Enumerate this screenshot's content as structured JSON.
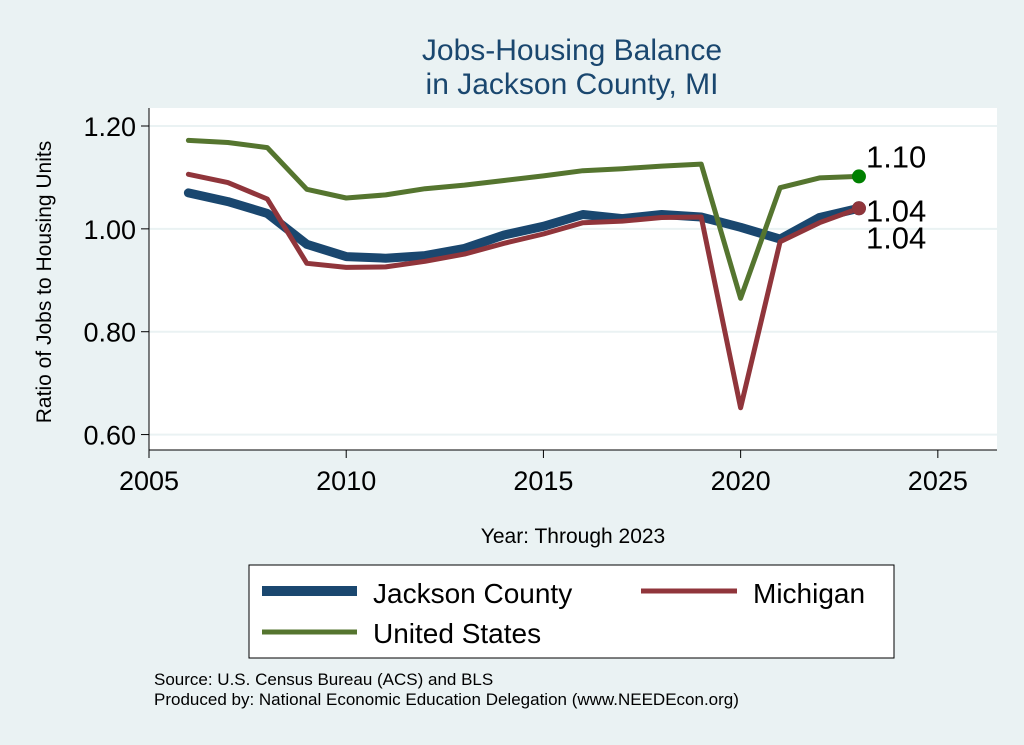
{
  "chart_data": {
    "type": "line",
    "title": [
      "Jobs-Housing Balance",
      "in Jackson County, MI"
    ],
    "xlabel": "Year: Through 2023",
    "ylabel": "Ratio of Jobs to Housing Units",
    "xlim": [
      2005,
      2026.5
    ],
    "ylim": [
      0.57,
      1.235
    ],
    "xticks": [
      2005,
      2010,
      2015,
      2020,
      2025
    ],
    "yticks": [
      0.6,
      0.8,
      1.0,
      1.2
    ],
    "ytick_labels": [
      "0.60",
      "0.80",
      "1.00",
      "1.20"
    ],
    "grid": true,
    "x": [
      2006,
      2007,
      2008,
      2009,
      2010,
      2011,
      2012,
      2013,
      2014,
      2015,
      2016,
      2017,
      2018,
      2019,
      2020,
      2021,
      2022,
      2023
    ],
    "series": [
      {
        "name": "Jackson County",
        "color": "#1a476f",
        "values": [
          1.07,
          1.053,
          1.03,
          0.97,
          0.946,
          0.943,
          0.948,
          0.962,
          0.988,
          1.005,
          1.028,
          1.02,
          1.028,
          1.023,
          1.003,
          0.98,
          1.022,
          1.04
        ],
        "end_label": "1.04"
      },
      {
        "name": "Michigan",
        "color": "#90353b",
        "values": [
          1.106,
          1.09,
          1.058,
          0.933,
          0.925,
          0.926,
          0.937,
          0.951,
          0.972,
          0.99,
          1.012,
          1.015,
          1.022,
          1.023,
          0.652,
          0.975,
          1.012,
          1.04
        ],
        "end_label": "1.04"
      },
      {
        "name": "United States",
        "color": "#55752f",
        "values": [
          1.172,
          1.168,
          1.158,
          1.077,
          1.06,
          1.066,
          1.078,
          1.085,
          1.094,
          1.103,
          1.113,
          1.117,
          1.122,
          1.126,
          0.865,
          1.08,
          1.099,
          1.102
        ],
        "end_label": "1.10"
      }
    ],
    "legend": {
      "placement": "bottom",
      "entries": [
        "Jackson County",
        "Michigan",
        "United States"
      ]
    }
  },
  "footer": {
    "source": "Source: U.S. Census Bureau (ACS) and BLS",
    "produced_by": "Produced by: National Economic Education Delegation (www.NEEDEcon.org)"
  },
  "colors": {
    "background": "#eaf2f3",
    "plot_background": "#ffffff",
    "grid": "#eaf2f3",
    "title": "#1a476f",
    "us_marker": "#008000"
  }
}
